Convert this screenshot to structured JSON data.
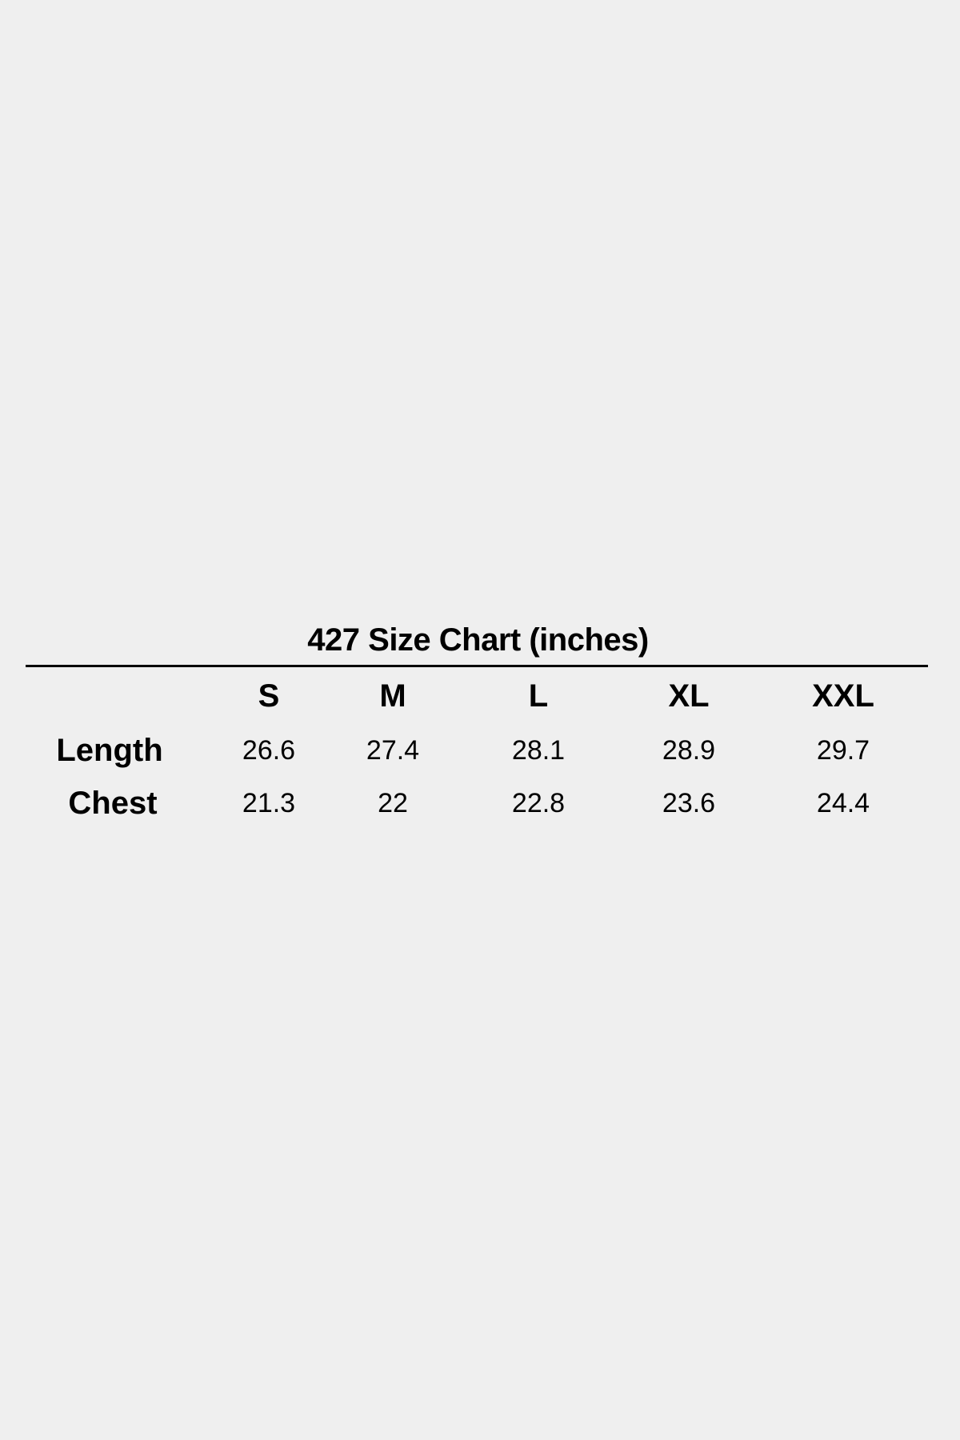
{
  "title": "427 Size Chart (inches)",
  "columns": [
    "S",
    "M",
    "L",
    "XL",
    "XXL"
  ],
  "rows": [
    {
      "label": "Length",
      "values": [
        "26.6",
        "27.4",
        "28.1",
        "28.9",
        "29.7"
      ]
    },
    {
      "label": "Chest",
      "values": [
        "21.3",
        "22",
        "22.8",
        "23.6",
        "24.4"
      ]
    }
  ]
}
